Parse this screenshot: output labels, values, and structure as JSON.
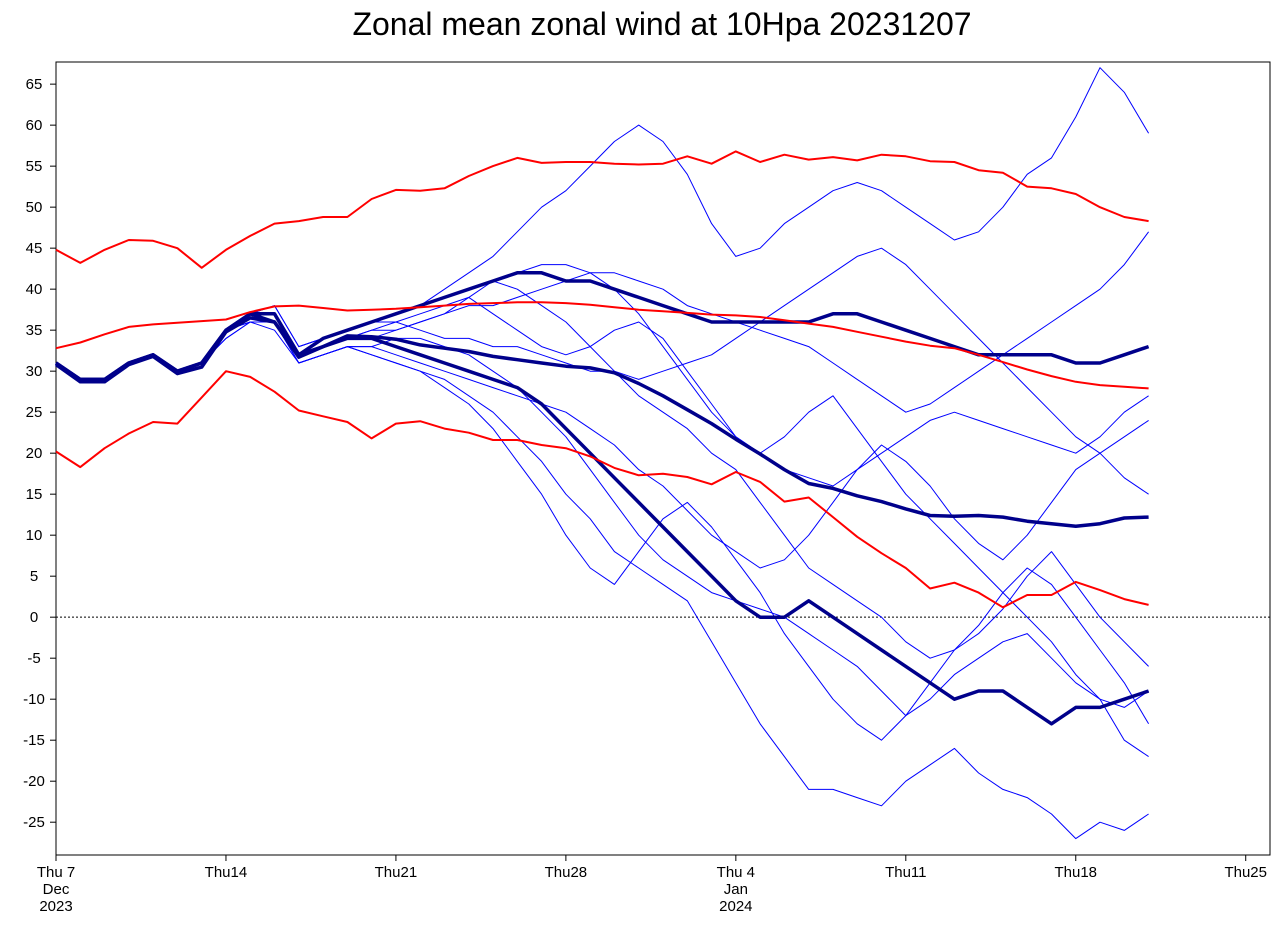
{
  "chart_data": {
    "type": "line",
    "title": "Zonal mean zonal wind at 10Hpa 20231207",
    "x": [
      "2023-12-07",
      "2023-12-08",
      "2023-12-09",
      "2023-12-10",
      "2023-12-11",
      "2023-12-12",
      "2023-12-13",
      "2023-12-14",
      "2023-12-15",
      "2023-12-16",
      "2023-12-17",
      "2023-12-18",
      "2023-12-19",
      "2023-12-20",
      "2023-12-21",
      "2023-12-22",
      "2023-12-23",
      "2023-12-24",
      "2023-12-25",
      "2023-12-26",
      "2023-12-27",
      "2023-12-28",
      "2023-12-29",
      "2023-12-30",
      "2023-12-31",
      "2024-01-01",
      "2024-01-02",
      "2024-01-03",
      "2024-01-04",
      "2024-01-05",
      "2024-01-06",
      "2024-01-07",
      "2024-01-08",
      "2024-01-09",
      "2024-01-10",
      "2024-01-11",
      "2024-01-12",
      "2024-01-13",
      "2024-01-14",
      "2024-01-15",
      "2024-01-16",
      "2024-01-17",
      "2024-01-18",
      "2024-01-19",
      "2024-01-20",
      "2024-01-21"
    ],
    "xlim": [
      "2023-12-07",
      "2024-01-26"
    ],
    "xticks": [
      {
        "value": "2023-12-07",
        "label": "Thu 7\nDec\n2023"
      },
      {
        "value": "2023-12-14",
        "label": "Thu14"
      },
      {
        "value": "2023-12-21",
        "label": "Thu21"
      },
      {
        "value": "2023-12-28",
        "label": "Thu28"
      },
      {
        "value": "2024-01-04",
        "label": "Thu 4\nJan\n2024"
      },
      {
        "value": "2024-01-11",
        "label": "Thu11"
      },
      {
        "value": "2024-01-18",
        "label": "Thu18"
      },
      {
        "value": "2024-01-25",
        "label": "Thu25"
      }
    ],
    "ylim": [
      -29,
      67.7
    ],
    "yticks": [
      -25,
      -20,
      -15,
      -10,
      -5,
      0,
      5,
      10,
      15,
      20,
      25,
      30,
      35,
      40,
      45,
      50,
      55,
      60,
      65
    ],
    "hline": 0,
    "series": [
      {
        "color": "#0000ff",
        "values": [
          31,
          29,
          29,
          31,
          32,
          30,
          31,
          35,
          37,
          37,
          32,
          34,
          35,
          36,
          37,
          38,
          40,
          42,
          44,
          47,
          50,
          52,
          55,
          58,
          60,
          58,
          54,
          48,
          44,
          45,
          48,
          50,
          52,
          53,
          52,
          50,
          48,
          46,
          47,
          50,
          54,
          56,
          61,
          67,
          64,
          59
        ]
      },
      {
        "color": "#0000ff",
        "values": [
          31,
          29,
          29,
          31,
          32,
          30,
          31,
          35,
          37,
          36,
          31,
          32,
          33,
          32,
          31,
          30,
          29,
          27,
          25,
          22,
          19,
          15,
          12,
          8,
          6,
          4,
          2,
          -3,
          -8,
          -13,
          -17,
          -21,
          -21,
          -22,
          -23,
          -20,
          -18,
          -16,
          -19,
          -21,
          -22,
          -24,
          -27,
          -25,
          -26,
          -24
        ]
      },
      {
        "color": "#0000ff",
        "values": [
          31,
          29,
          29,
          31,
          32,
          30,
          31,
          35,
          36,
          36,
          32,
          33,
          34,
          34,
          35,
          36,
          37,
          39,
          41,
          40,
          38,
          36,
          33,
          30,
          27,
          25,
          23,
          20,
          18,
          14,
          10,
          6,
          4,
          2,
          0,
          -3,
          -5,
          -4,
          -2,
          1,
          5,
          8,
          4,
          0,
          -3,
          -6
        ]
      },
      {
        "color": "#0000ff",
        "values": [
          31,
          29,
          29,
          31,
          32,
          30,
          31,
          35,
          37,
          38,
          33,
          34,
          35,
          36,
          36,
          35,
          34,
          34,
          33,
          33,
          32,
          31,
          30,
          30,
          29,
          30,
          31,
          32,
          34,
          36,
          38,
          40,
          42,
          44,
          45,
          43,
          40,
          37,
          34,
          31,
          28,
          25,
          22,
          20,
          22,
          24
        ]
      },
      {
        "color": "#0000ff",
        "values": [
          31,
          29,
          29,
          31,
          32,
          30,
          31,
          34,
          36,
          35,
          31,
          32,
          33,
          32,
          31,
          30,
          28,
          26,
          23,
          19,
          15,
          10,
          6,
          4,
          8,
          12,
          14,
          11,
          7,
          3,
          -2,
          -6,
          -10,
          -13,
          -15,
          -12,
          -8,
          -4,
          -1,
          3,
          6,
          4,
          0,
          -4,
          -8,
          -13
        ]
      },
      {
        "color": "#0000ff",
        "values": [
          31,
          29,
          29,
          31,
          32,
          30,
          31,
          35,
          37,
          37,
          32,
          33,
          34,
          35,
          35,
          36,
          37,
          38,
          38,
          39,
          40,
          41,
          42,
          42,
          41,
          40,
          38,
          37,
          36,
          35,
          34,
          33,
          31,
          29,
          27,
          25,
          26,
          28,
          30,
          32,
          34,
          36,
          38,
          40,
          43,
          47
        ]
      },
      {
        "color": "#0000ff",
        "values": [
          31,
          29,
          29,
          31,
          32,
          30,
          31,
          34,
          36,
          36,
          31,
          32,
          33,
          33,
          32,
          31,
          30,
          29,
          28,
          27,
          26,
          25,
          23,
          21,
          18,
          16,
          13,
          10,
          8,
          6,
          7,
          10,
          14,
          18,
          21,
          19,
          16,
          12,
          9,
          7,
          10,
          14,
          18,
          20,
          17,
          15
        ]
      },
      {
        "color": "#0000ff",
        "values": [
          31,
          29,
          29,
          31,
          32,
          30,
          31,
          35,
          37,
          37,
          32,
          33,
          34,
          35,
          36,
          37,
          38,
          39,
          37,
          35,
          33,
          32,
          33,
          35,
          36,
          34,
          30,
          26,
          22,
          20,
          22,
          25,
          27,
          23,
          19,
          15,
          12,
          9,
          6,
          3,
          0,
          -3,
          -7,
          -10,
          -11,
          -9
        ]
      },
      {
        "color": "#0000ff",
        "values": [
          31,
          29,
          29,
          31,
          32,
          30,
          31,
          35,
          36,
          36,
          31,
          32,
          33,
          33,
          34,
          34,
          33,
          32,
          30,
          28,
          25,
          22,
          18,
          14,
          10,
          7,
          5,
          3,
          2,
          1,
          0,
          -2,
          -4,
          -6,
          -9,
          -12,
          -10,
          -7,
          -5,
          -3,
          -2,
          -5,
          -8,
          -10,
          -15,
          -17
        ]
      },
      {
        "color": "#0000ff",
        "values": [
          31,
          29,
          29,
          31,
          32,
          30,
          31,
          35,
          37,
          38,
          33,
          34,
          35,
          36,
          37,
          38,
          39,
          40,
          41,
          42,
          43,
          43,
          42,
          40,
          37,
          33,
          29,
          25,
          22,
          20,
          18,
          17,
          16,
          18,
          20,
          22,
          24,
          25,
          24,
          23,
          22,
          21,
          20,
          22,
          25,
          27
        ]
      },
      {
        "color": "#00008b",
        "values": [
          31,
          29,
          29,
          31,
          32,
          30,
          31,
          35,
          37,
          36,
          32,
          33,
          34,
          34,
          33,
          32,
          31,
          30,
          29,
          28,
          26,
          23,
          20,
          17,
          14,
          11,
          8,
          5,
          2,
          0,
          0,
          2,
          0,
          -2,
          -4,
          -6,
          -8,
          -10,
          -9,
          -9,
          -11,
          -13,
          -11,
          -11,
          -10,
          -9
        ]
      },
      {
        "color": "#00008b",
        "values": [
          31,
          29,
          29,
          31,
          32,
          30,
          31,
          35,
          37,
          37,
          32,
          34,
          35,
          36,
          37,
          38,
          39,
          40,
          41,
          42,
          42,
          41,
          41,
          40,
          39,
          38,
          37,
          36,
          36,
          36,
          36,
          36,
          37,
          37,
          36,
          35,
          34,
          33,
          32,
          32,
          32,
          32,
          31,
          31,
          32,
          33
        ]
      },
      {
        "color": "#00008b",
        "values": [
          30.8,
          28.7,
          28.7,
          30.8,
          31.8,
          29.7,
          30.5,
          34.8,
          36.5,
          36,
          31.7,
          33,
          34.3,
          34.2,
          33.9,
          33.2,
          32.8,
          32.4,
          31.8,
          31.4,
          31,
          30.6,
          30.4,
          29.8,
          28.5,
          27,
          25.3,
          23.6,
          21.7,
          19.9,
          18,
          16.3,
          15.7,
          14.8,
          14.1,
          13.2,
          12.4,
          12.3,
          12.4,
          12.2,
          11.7,
          11.4,
          11.1,
          11.4,
          12.1,
          12.2
        ]
      },
      {
        "color": "#ff0000",
        "values": [
          44.8,
          43.2,
          44.8,
          46,
          45.9,
          45,
          42.6,
          44.8,
          46.5,
          48,
          48.3,
          48.8,
          48.8,
          51,
          52.1,
          52,
          52.3,
          53.8,
          55,
          56,
          55.4,
          55.5,
          55.5,
          55.3,
          55.2,
          55.3,
          56.2,
          55.3,
          56.8,
          55.5,
          56.4,
          55.8,
          56.1,
          55.7,
          56.4,
          56.2,
          55.6,
          55.5,
          54.5,
          54.2,
          52.5,
          52.3,
          51.6,
          50,
          48.8,
          48.3
        ]
      },
      {
        "color": "#ff0000",
        "values": [
          20.2,
          18.3,
          20.6,
          22.4,
          23.8,
          23.6,
          26.8,
          30,
          29.3,
          27.5,
          25.2,
          24.5,
          23.8,
          21.8,
          23.6,
          23.9,
          23,
          22.5,
          21.6,
          21.6,
          21,
          20.6,
          19.6,
          18.2,
          17.3,
          17.5,
          17.1,
          16.2,
          17.7,
          16.5,
          14.1,
          14.6,
          12.2,
          9.8,
          7.8,
          6,
          3.5,
          4.2,
          3,
          1.2,
          2.7,
          2.7,
          4.3,
          3.3,
          2.2,
          1.5
        ]
      },
      {
        "color": "#ff0000",
        "values": [
          32.8,
          33.5,
          34.5,
          35.4,
          35.7,
          35.9,
          36.1,
          36.3,
          37.2,
          37.9,
          38,
          37.7,
          37.4,
          37.5,
          37.6,
          37.8,
          38,
          38.2,
          38.3,
          38.4,
          38.4,
          38.3,
          38.1,
          37.8,
          37.5,
          37.3,
          37.1,
          36.9,
          36.8,
          36.6,
          36.2,
          35.8,
          35.4,
          34.8,
          34.2,
          33.6,
          33.1,
          32.8,
          32,
          31.1,
          30.2,
          29.4,
          28.7,
          28.3,
          28.1,
          27.9
        ]
      }
    ]
  }
}
